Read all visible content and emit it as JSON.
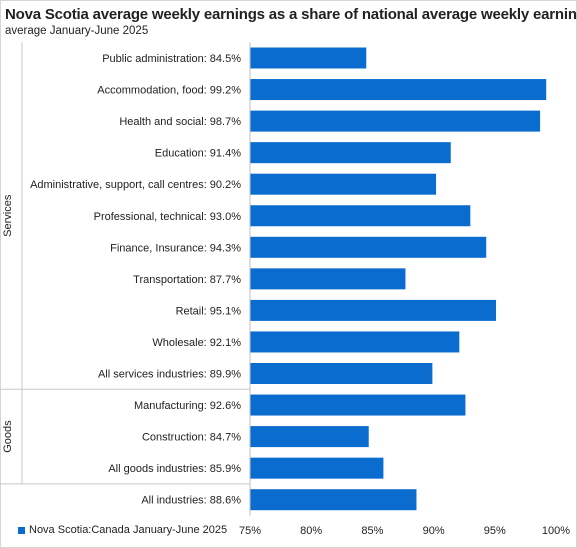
{
  "chart_data": {
    "type": "bar",
    "orientation": "horizontal",
    "title": "Nova Scotia average weekly earnings as a share of national average weekly earnings",
    "subtitle": "average January-June 2025",
    "categories": [
      "Public administration:  84.5%",
      "Accommodation, food:  99.2%",
      "Health and social:  98.7%",
      "Education:  91.4%",
      "Administrative, support, call centres:  90.2%",
      "Professional, technical:  93.0%",
      "Finance, Insurance:  94.3%",
      "Transportation:  87.7%",
      "Retail:  95.1%",
      "Wholesale:  92.1%",
      "All services industries:  89.9%",
      "Manufacturing:  92.6%",
      "Construction:  84.7%",
      "All goods industries:  85.9%",
      "All industries:  88.6%"
    ],
    "series": [
      {
        "name": "Nova Scotia:Canada January-June 2025",
        "values": [
          84.5,
          99.2,
          98.7,
          91.4,
          90.2,
          93.0,
          94.3,
          87.7,
          95.1,
          92.1,
          89.9,
          92.6,
          84.7,
          85.9,
          88.6
        ],
        "color": "#0a6ccf"
      }
    ],
    "groups": [
      {
        "label": "Services",
        "count": 11
      },
      {
        "label": "Goods",
        "count": 3
      },
      {
        "label": "",
        "count": 1
      }
    ],
    "xlim": [
      75,
      100
    ],
    "xticks": [
      75,
      80,
      85,
      90,
      95,
      100
    ],
    "xtick_labels": [
      "75%",
      "80%",
      "85%",
      "90%",
      "95%",
      "100%"
    ],
    "grid": false,
    "legend_position": "bottom-left"
  }
}
